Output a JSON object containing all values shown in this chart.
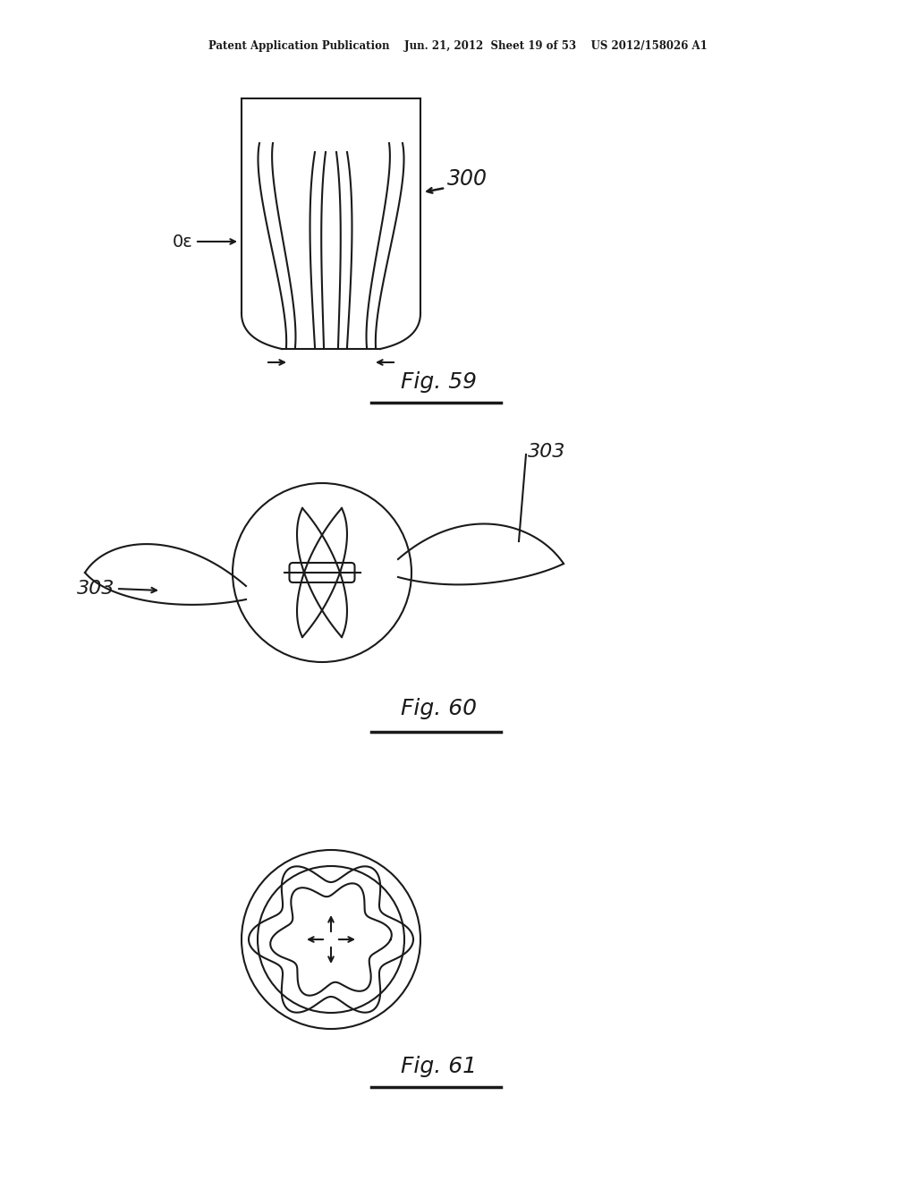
{
  "bg_color": "#ffffff",
  "line_color": "#1a1a1a",
  "header_text": "Patent Application Publication    Jun. 21, 2012  Sheet 19 of 53    US 2012/158026 A1",
  "fig59_label": "Fig. 59",
  "fig60_label": "Fig. 60",
  "fig61_label": "Fig. 61",
  "label_300": "300",
  "label_30": "30",
  "label_303a": "303",
  "label_303b": "303"
}
